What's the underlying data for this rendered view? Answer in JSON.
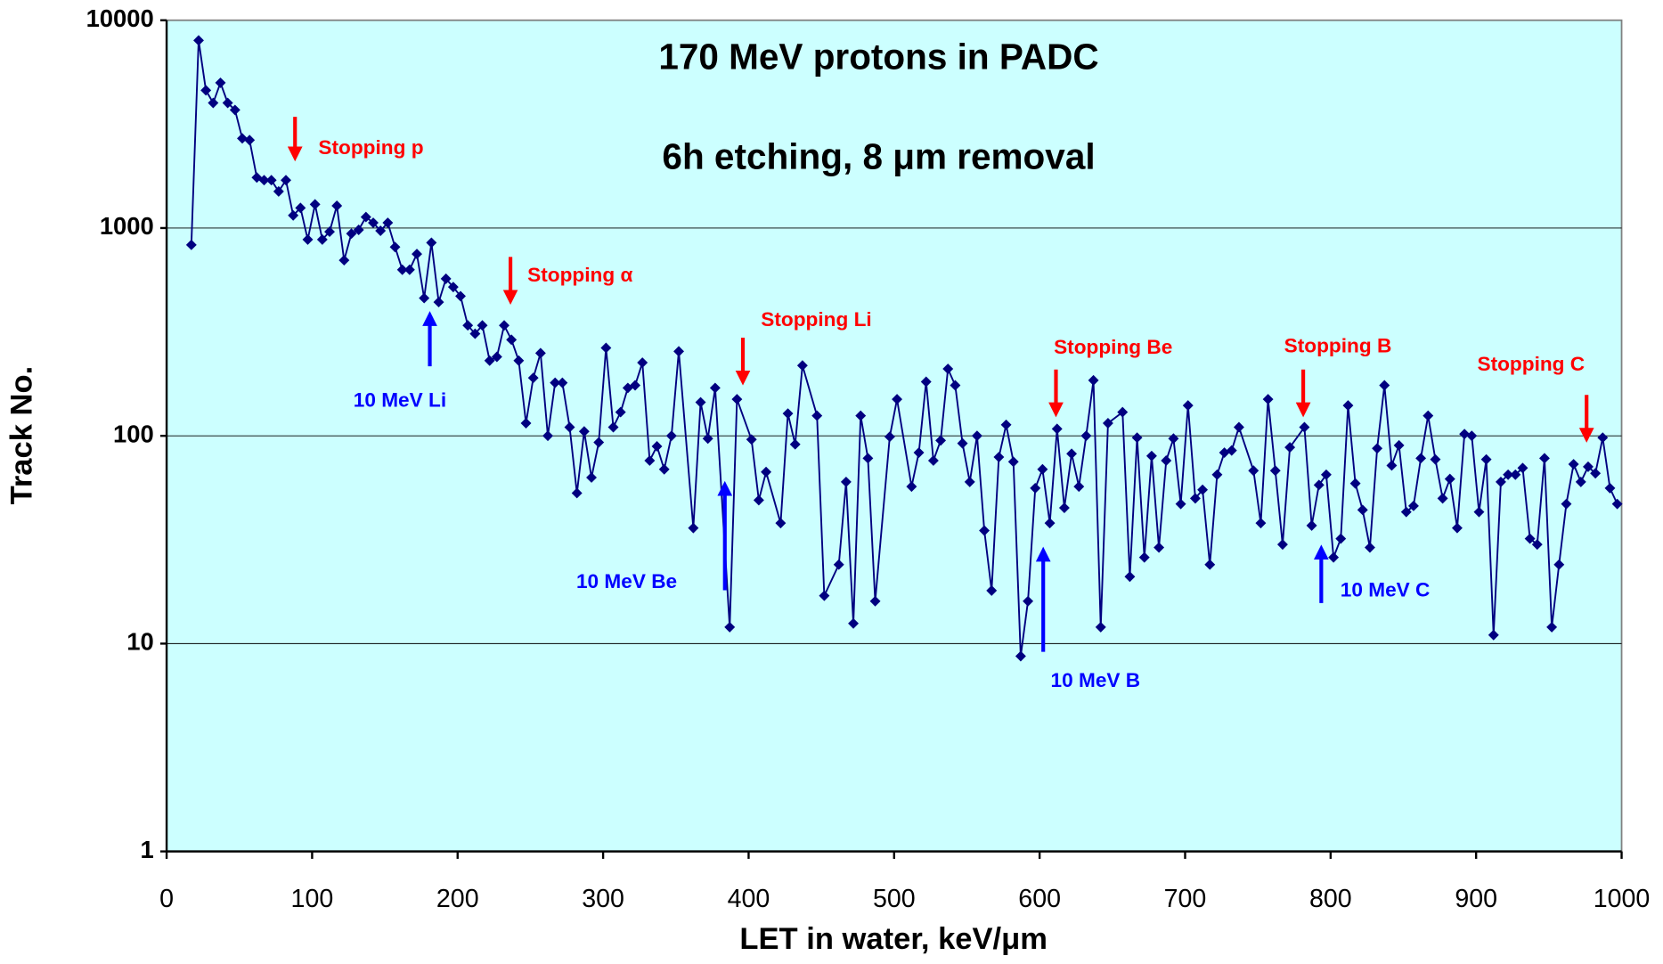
{
  "chart_data": {
    "type": "line",
    "title": "170 MeV protons in PADC",
    "subtitle": "6h etching, 8 μm removal",
    "x_label": "LET in water, keV/μm",
    "y_label": "Track No.",
    "log_y": true,
    "grid": true,
    "background": "#ccffff",
    "x": [
      17,
      22,
      27,
      32,
      37,
      42,
      47,
      52,
      57,
      62,
      67,
      72,
      77,
      82,
      87,
      92,
      97,
      102,
      107,
      112,
      117,
      122,
      127,
      132,
      137,
      142,
      147,
      152,
      157,
      162,
      167,
      172,
      177,
      182,
      187,
      192,
      197,
      202,
      207,
      212,
      217,
      222,
      227,
      232,
      237,
      242,
      247,
      252,
      257,
      262,
      267,
      272,
      277,
      282,
      287,
      292,
      297,
      302,
      307,
      312,
      317,
      322,
      327,
      332,
      337,
      342,
      347,
      352,
      362,
      367,
      372,
      377,
      387,
      392,
      402,
      407,
      412,
      422,
      427,
      432,
      437,
      447,
      452,
      462,
      467,
      472,
      477,
      482,
      487,
      497,
      502,
      512,
      517,
      522,
      527,
      532,
      537,
      542,
      547,
      552,
      557,
      562,
      567,
      572,
      577,
      582,
      587,
      592,
      597,
      602,
      607,
      612,
      617,
      622,
      627,
      632,
      637,
      642,
      647,
      657,
      662,
      667,
      672,
      677,
      682,
      687,
      692,
      697,
      702,
      707,
      712,
      717,
      722,
      727,
      732,
      737,
      747,
      752,
      757,
      762,
      767,
      772,
      782,
      787,
      792,
      797,
      802,
      807,
      812,
      817,
      822,
      827,
      832,
      837,
      842,
      847,
      852,
      857,
      862,
      867,
      872,
      877,
      882,
      887,
      892,
      897,
      902,
      907,
      912,
      917,
      922,
      927,
      932,
      937,
      942,
      947,
      952,
      957,
      962,
      967,
      972,
      977,
      982,
      987,
      992,
      997
    ],
    "series": [
      {
        "name": "Tracks",
        "color": "#000080",
        "values": [
          830,
          8000,
          4600,
          4000,
          5000,
          4000,
          3700,
          2700,
          2650,
          1750,
          1700,
          1700,
          1500,
          1700,
          1150,
          1250,
          880,
          1300,
          880,
          960,
          1280,
          700,
          940,
          980,
          1130,
          1060,
          970,
          1060,
          810,
          630,
          630,
          750,
          460,
          850,
          440,
          570,
          520,
          470,
          340,
          310,
          340,
          230,
          240,
          340,
          290,
          230,
          115,
          190,
          250,
          100,
          180,
          180,
          110,
          53,
          105,
          63,
          93,
          265,
          110,
          130,
          170,
          175,
          225,
          76,
          89,
          69,
          100,
          255,
          36,
          145,
          97,
          170,
          12,
          150,
          96,
          49,
          67,
          38,
          128,
          91,
          218,
          125,
          17,
          24,
          60,
          12.5,
          125,
          78,
          16,
          99,
          150,
          57,
          83,
          182,
          76,
          95,
          210,
          175,
          92,
          60,
          100,
          35,
          18,
          79,
          113,
          75,
          8.7,
          16,
          56,
          69,
          38,
          108,
          45,
          82,
          57,
          100,
          185,
          12,
          115,
          130,
          21,
          98,
          26,
          80,
          29,
          76,
          97,
          47,
          140,
          50,
          55,
          24,
          65,
          83,
          85,
          110,
          68,
          38,
          150,
          68,
          30,
          88,
          110,
          37,
          58,
          65,
          26,
          32,
          140,
          59,
          44,
          29,
          87,
          175,
          72,
          90,
          43,
          46,
          78,
          125,
          77,
          50,
          62,
          36,
          102,
          100,
          43,
          77,
          11,
          60,
          65,
          65,
          70,
          32,
          30,
          78,
          12,
          24,
          47,
          73,
          60,
          71,
          66,
          98,
          56,
          47
        ]
      }
    ],
    "xlim": [
      0,
      1000
    ],
    "xticks": [
      0,
      100,
      200,
      300,
      400,
      500,
      600,
      700,
      800,
      900,
      1000
    ],
    "ylim": [
      1,
      10000
    ],
    "yticks": [
      1,
      10,
      100,
      1000,
      10000
    ],
    "annotations": [
      {
        "text": "Stopping p",
        "color": "#ff0000"
      },
      {
        "text": "Stopping α",
        "color": "#ff0000"
      },
      {
        "text": "Stopping Li",
        "color": "#ff0000"
      },
      {
        "text": "Stopping Be",
        "color": "#ff0000"
      },
      {
        "text": "Stopping B",
        "color": "#ff0000"
      },
      {
        "text": "Stopping C",
        "color": "#ff0000"
      },
      {
        "text": "10 MeV Li",
        "color": "#0000ff"
      },
      {
        "text": "10 MeV Be",
        "color": "#0000ff"
      },
      {
        "text": "10 MeV B",
        "color": "#0000ff"
      },
      {
        "text": "10 MeV C",
        "color": "#0000ff"
      }
    ]
  }
}
